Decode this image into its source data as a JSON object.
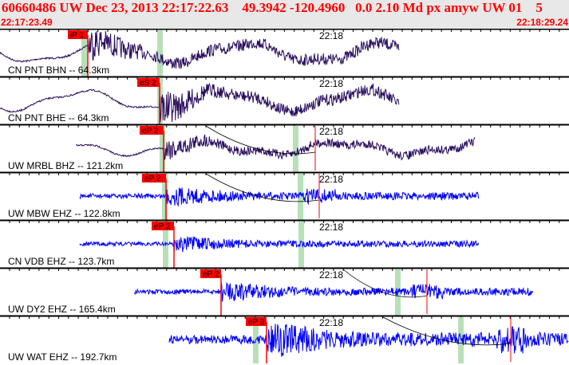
{
  "header": {
    "title": "60660486 UW Dec 23, 2013 22:17:22.63    49.3942 -120.4960   0.0 2.10 Md px amyw UW 01    5",
    "start_time": "22:17:23.49",
    "end_time": "22:18:29.24"
  },
  "colors": {
    "header_text": "#ff0000",
    "pick": "#ff0000",
    "window": "#b8e0b8",
    "trace_bb": "#2a0f5e",
    "trace_sp": "#0000ff"
  },
  "traces": [
    {
      "label": "CN PNT BHN -- 64.3km",
      "minute": "22:18",
      "pick": "iP 1"
    },
    {
      "label": "CN PNT BHE -- 64.3km",
      "minute": "22:18",
      "pick": "eS 2"
    },
    {
      "label": "UW MRBL BHZ -- 121.2km",
      "minute": "22:18",
      "pick": "eP 2"
    },
    {
      "label": "UW MBW EHZ -- 122.8km",
      "minute": "22:18",
      "pick": "eP 2"
    },
    {
      "label": "CN VDB EHZ -- 123.7km",
      "minute": "22:18",
      "pick": "eP 2"
    },
    {
      "label": "UW DY2 EHZ -- 165.4km",
      "minute": "22:18",
      "pick": "eP 2"
    },
    {
      "label": "UW WAT EHZ -- 192.7km",
      "minute": "22:18",
      "pick": "eP 2"
    }
  ]
}
